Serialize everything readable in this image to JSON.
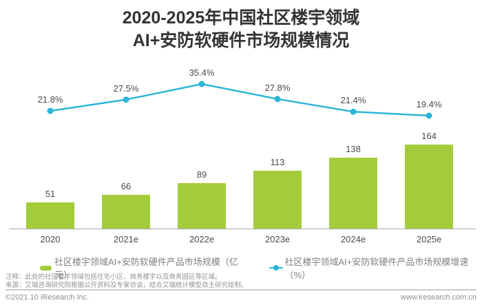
{
  "title": {
    "line1": "2020-2025年中国社区楼宇领域",
    "line2": "AI+安防软硬件市场规模情况"
  },
  "chart_data": {
    "type": "bar",
    "title": "2020-2025年中国社区楼宇领域AI+安防软硬件市场规模情况",
    "categories": [
      "2020",
      "2021e",
      "2022e",
      "2023e",
      "2024e",
      "2025e"
    ],
    "series": [
      {
        "name": "社区楼宇领域AI+安防软硬件产品市场规模（亿元）",
        "type": "bar",
        "values": [
          51,
          66,
          89,
          113,
          138,
          164
        ],
        "color": "#a3cc3a",
        "unit": "亿元"
      },
      {
        "name": "社区楼宇领域AI+安防软硬件产品市场规模增速（%）",
        "type": "line",
        "values": [
          21.8,
          27.5,
          35.4,
          27.8,
          21.4,
          19.4
        ],
        "color": "#2bb5d8",
        "unit": "%"
      }
    ],
    "grid": false,
    "legend_position": "bottom",
    "value_labels_shown": true
  },
  "legend": {
    "bar_label": "社区楼宇领域AI+安防软硬件产品市场规模（亿元）",
    "line_label": "社区楼宇领域AI+安防软硬件产品市场规模增速（%）"
  },
  "footnotes": {
    "note": "注释：此处的社区楼宇领域包括住宅小区、商务楼宇以及商务园区等区域。",
    "source": "来源：艾瑞咨询研究院根据公开资料及专家访谈，结合艾瑞统计模型自主研究绘制。"
  },
  "footer": {
    "left": "©2021.10 iResearch Inc.",
    "right": "www.iresearch.com.cn"
  },
  "colors": {
    "bar": "#a3cc3a",
    "line": "#2bb5d8",
    "title": "#333333",
    "label": "#4a4a4a",
    "muted": "#909090",
    "axis": "#a8a8a8"
  }
}
